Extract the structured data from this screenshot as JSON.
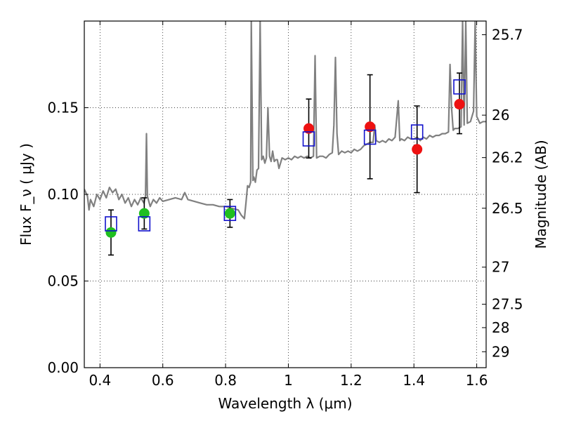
{
  "chart_data": {
    "type": "scatter",
    "xlabel": "Wavelength  λ (μm)",
    "ylabel": "Flux  F_ν  ( μJy )",
    "ylabel_right": "Magnitude (AB)",
    "xlim": [
      0.35,
      1.63
    ],
    "ylim": [
      0.0,
      0.2
    ],
    "grid": true,
    "x_ticks": [
      0.4,
      0.6,
      0.8,
      1.0,
      1.2,
      1.4,
      1.6
    ],
    "x_tick_labels": [
      "0.4",
      "0.6",
      "0.8",
      "1",
      "1.2",
      "1.4",
      "1.6"
    ],
    "y_ticks": [
      0.0,
      0.05,
      0.1,
      0.15
    ],
    "y_tick_labels": [
      "0.00",
      "0.05",
      "0.10",
      "0.15"
    ],
    "right_ticks": [
      {
        "label": "25.7",
        "flux": 0.1921
      },
      {
        "label": "26",
        "flux": 0.1457
      },
      {
        "label": "26.2",
        "flux": 0.1212
      },
      {
        "label": "26.5",
        "flux": 0.092
      },
      {
        "label": "27",
        "flux": 0.058
      },
      {
        "label": "27.5",
        "flux": 0.0366
      },
      {
        "label": "28",
        "flux": 0.0231
      },
      {
        "label": "29",
        "flux": 0.0092
      }
    ],
    "series": [
      {
        "marker": "circle",
        "color": "#1fbf1f",
        "points": [
          {
            "x": 0.435,
            "y": 0.078
          },
          {
            "x": 0.541,
            "y": 0.089
          },
          {
            "x": 0.814,
            "y": 0.089
          }
        ]
      },
      {
        "marker": "circle",
        "color": "#ee1111",
        "points": [
          {
            "x": 1.065,
            "y": 0.138
          },
          {
            "x": 1.26,
            "y": 0.139
          },
          {
            "x": 1.41,
            "y": 0.126
          },
          {
            "x": 1.545,
            "y": 0.152
          }
        ]
      },
      {
        "marker": "square",
        "color": "#1111cc",
        "points": [
          {
            "x": 0.435,
            "y": 0.083
          },
          {
            "x": 0.541,
            "y": 0.083
          },
          {
            "x": 0.814,
            "y": 0.089
          },
          {
            "x": 1.065,
            "y": 0.132
          },
          {
            "x": 1.26,
            "y": 0.133
          },
          {
            "x": 1.41,
            "y": 0.136
          },
          {
            "x": 1.545,
            "y": 0.162
          }
        ]
      }
    ],
    "error_bars": [
      {
        "x": 0.435,
        "low": 0.065,
        "high": 0.091
      },
      {
        "x": 0.541,
        "low": 0.08,
        "high": 0.098
      },
      {
        "x": 0.814,
        "low": 0.081,
        "high": 0.097
      },
      {
        "x": 1.065,
        "low": 0.121,
        "high": 0.155
      },
      {
        "x": 1.26,
        "low": 0.109,
        "high": 0.169
      },
      {
        "x": 1.41,
        "low": 0.101,
        "high": 0.151
      },
      {
        "x": 1.545,
        "low": 0.135,
        "high": 0.17
      }
    ],
    "template_spectrum": {
      "color": "#808080",
      "points": [
        [
          0.35,
          0.103
        ],
        [
          0.36,
          0.099
        ],
        [
          0.365,
          0.091
        ],
        [
          0.37,
          0.097
        ],
        [
          0.38,
          0.093
        ],
        [
          0.39,
          0.1
        ],
        [
          0.4,
          0.097
        ],
        [
          0.41,
          0.102
        ],
        [
          0.42,
          0.098
        ],
        [
          0.43,
          0.104
        ],
        [
          0.44,
          0.101
        ],
        [
          0.45,
          0.103
        ],
        [
          0.46,
          0.097
        ],
        [
          0.47,
          0.1
        ],
        [
          0.48,
          0.095
        ],
        [
          0.49,
          0.098
        ],
        [
          0.5,
          0.093
        ],
        [
          0.51,
          0.097
        ],
        [
          0.52,
          0.094
        ],
        [
          0.53,
          0.098
        ],
        [
          0.54,
          0.095
        ],
        [
          0.545,
          0.099
        ],
        [
          0.548,
          0.135
        ],
        [
          0.551,
          0.099
        ],
        [
          0.56,
          0.093
        ],
        [
          0.57,
          0.097
        ],
        [
          0.58,
          0.095
        ],
        [
          0.59,
          0.098
        ],
        [
          0.6,
          0.096
        ],
        [
          0.62,
          0.097
        ],
        [
          0.64,
          0.098
        ],
        [
          0.66,
          0.097
        ],
        [
          0.67,
          0.101
        ],
        [
          0.68,
          0.097
        ],
        [
          0.7,
          0.096
        ],
        [
          0.72,
          0.095
        ],
        [
          0.74,
          0.094
        ],
        [
          0.76,
          0.094
        ],
        [
          0.78,
          0.093
        ],
        [
          0.8,
          0.093
        ],
        [
          0.82,
          0.092
        ],
        [
          0.84,
          0.091
        ],
        [
          0.85,
          0.088
        ],
        [
          0.86,
          0.086
        ],
        [
          0.865,
          0.095
        ],
        [
          0.87,
          0.105
        ],
        [
          0.875,
          0.104
        ],
        [
          0.88,
          0.107
        ],
        [
          0.882,
          0.2
        ],
        [
          0.887,
          0.108
        ],
        [
          0.89,
          0.11
        ],
        [
          0.895,
          0.107
        ],
        [
          0.9,
          0.114
        ],
        [
          0.905,
          0.115
        ],
        [
          0.91,
          0.2
        ],
        [
          0.915,
          0.12
        ],
        [
          0.92,
          0.122
        ],
        [
          0.925,
          0.118
        ],
        [
          0.93,
          0.121
        ],
        [
          0.935,
          0.15
        ],
        [
          0.94,
          0.122
        ],
        [
          0.945,
          0.119
        ],
        [
          0.95,
          0.125
        ],
        [
          0.955,
          0.119
        ],
        [
          0.96,
          0.12
        ],
        [
          0.965,
          0.12
        ],
        [
          0.97,
          0.115
        ],
        [
          0.98,
          0.121
        ],
        [
          0.99,
          0.12
        ],
        [
          1.0,
          0.121
        ],
        [
          1.01,
          0.12
        ],
        [
          1.02,
          0.122
        ],
        [
          1.03,
          0.121
        ],
        [
          1.04,
          0.122
        ],
        [
          1.05,
          0.121
        ],
        [
          1.06,
          0.122
        ],
        [
          1.07,
          0.121
        ],
        [
          1.08,
          0.122
        ],
        [
          1.085,
          0.18
        ],
        [
          1.09,
          0.121
        ],
        [
          1.1,
          0.122
        ],
        [
          1.11,
          0.122
        ],
        [
          1.12,
          0.121
        ],
        [
          1.13,
          0.123
        ],
        [
          1.14,
          0.124
        ],
        [
          1.145,
          0.14
        ],
        [
          1.15,
          0.179
        ],
        [
          1.155,
          0.135
        ],
        [
          1.16,
          0.123
        ],
        [
          1.17,
          0.125
        ],
        [
          1.18,
          0.124
        ],
        [
          1.19,
          0.125
        ],
        [
          1.2,
          0.124
        ],
        [
          1.21,
          0.126
        ],
        [
          1.22,
          0.125
        ],
        [
          1.23,
          0.126
        ],
        [
          1.24,
          0.128
        ],
        [
          1.25,
          0.129
        ],
        [
          1.26,
          0.13
        ],
        [
          1.27,
          0.13
        ],
        [
          1.275,
          0.14
        ],
        [
          1.28,
          0.131
        ],
        [
          1.29,
          0.13
        ],
        [
          1.3,
          0.131
        ],
        [
          1.31,
          0.13
        ],
        [
          1.32,
          0.132
        ],
        [
          1.33,
          0.131
        ],
        [
          1.34,
          0.133
        ],
        [
          1.35,
          0.154
        ],
        [
          1.355,
          0.131
        ],
        [
          1.36,
          0.132
        ],
        [
          1.37,
          0.131
        ],
        [
          1.38,
          0.133
        ],
        [
          1.39,
          0.132
        ],
        [
          1.4,
          0.132
        ],
        [
          1.41,
          0.133
        ],
        [
          1.42,
          0.131
        ],
        [
          1.43,
          0.133
        ],
        [
          1.44,
          0.132
        ],
        [
          1.45,
          0.134
        ],
        [
          1.46,
          0.133
        ],
        [
          1.47,
          0.134
        ],
        [
          1.48,
          0.134
        ],
        [
          1.49,
          0.135
        ],
        [
          1.5,
          0.135
        ],
        [
          1.51,
          0.136
        ],
        [
          1.515,
          0.175
        ],
        [
          1.52,
          0.15
        ],
        [
          1.525,
          0.137
        ],
        [
          1.53,
          0.138
        ],
        [
          1.54,
          0.138
        ],
        [
          1.55,
          0.139
        ],
        [
          1.555,
          0.2
        ],
        [
          1.56,
          0.14
        ],
        [
          1.565,
          0.2
        ],
        [
          1.57,
          0.141
        ],
        [
          1.58,
          0.142
        ],
        [
          1.59,
          0.148
        ],
        [
          1.595,
          0.2
        ],
        [
          1.6,
          0.145
        ],
        [
          1.61,
          0.141
        ],
        [
          1.62,
          0.142
        ],
        [
          1.63,
          0.142
        ]
      ]
    }
  }
}
